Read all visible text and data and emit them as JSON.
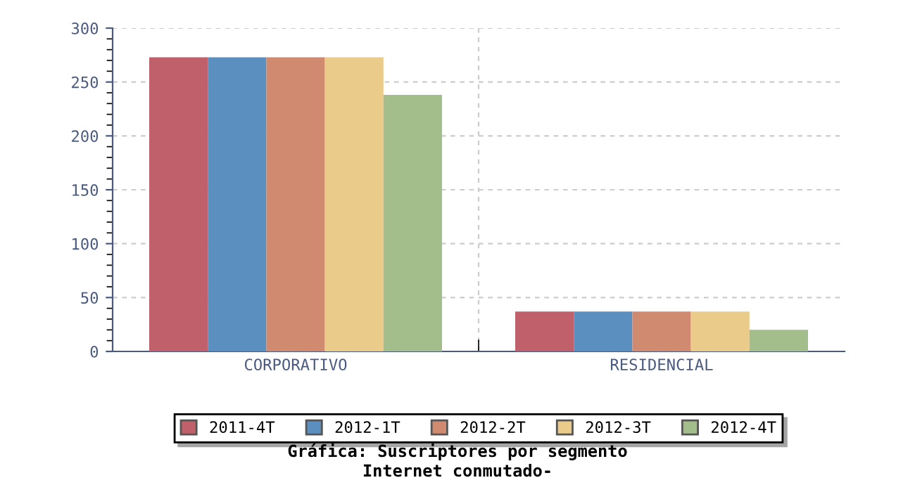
{
  "chart_data": {
    "type": "bar",
    "title": "Gráfica: Suscriptores por segmento",
    "subtitle": "Internet conmutado-",
    "categories": [
      "CORPORATIVO",
      "RESIDENCIAL"
    ],
    "series": [
      {
        "name": "2011-4T",
        "color": "#c0606a",
        "values": [
          273,
          37
        ]
      },
      {
        "name": "2012-1T",
        "color": "#5b8fbf",
        "values": [
          273,
          37
        ]
      },
      {
        "name": "2012-2T",
        "color": "#d08a70",
        "values": [
          273,
          37
        ]
      },
      {
        "name": "2012-3T",
        "color": "#eacb8a",
        "values": [
          273,
          37
        ]
      },
      {
        "name": "2012-4T",
        "color": "#a3bd8b",
        "values": [
          238,
          20
        ]
      }
    ],
    "ylim": [
      0,
      300
    ],
    "yticks": [
      0,
      50,
      100,
      150,
      200,
      250,
      300
    ],
    "grid": true,
    "legend": "bottom"
  }
}
